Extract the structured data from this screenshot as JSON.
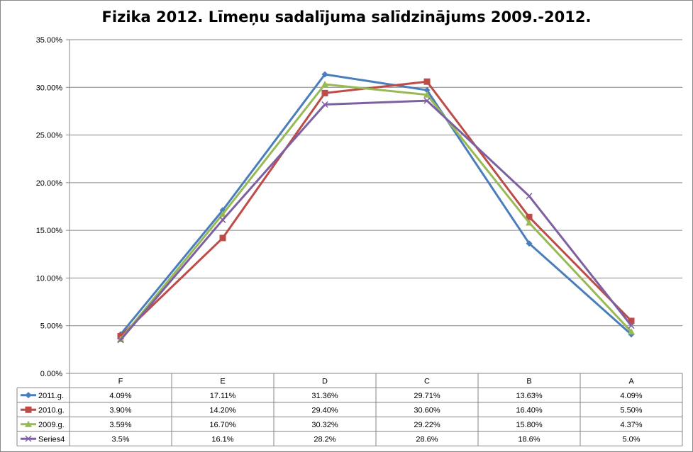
{
  "chart_data": {
    "type": "line",
    "title": "Fizika 2012. Līmeņu sadalījuma salīdzinājums 2009.-2012.",
    "categories": [
      "F",
      "E",
      "D",
      "C",
      "B",
      "A"
    ],
    "ylim": [
      0,
      35
    ],
    "yticks": [
      "0.00%",
      "5.00%",
      "10.00%",
      "15.00%",
      "20.00%",
      "25.00%",
      "30.00%",
      "35.00%"
    ],
    "grid": true,
    "legend": "data table below chart",
    "series": [
      {
        "name": "2011.g.",
        "color": "#4a7ebb",
        "marker": "diamond",
        "values": [
          4.09,
          17.11,
          31.36,
          29.71,
          13.63,
          4.09
        ],
        "labels": [
          "4.09%",
          "17.11%",
          "31.36%",
          "29.71%",
          "13.63%",
          "4.09%"
        ]
      },
      {
        "name": "2010.g.",
        "color": "#be4b48",
        "marker": "square",
        "values": [
          3.9,
          14.2,
          29.4,
          30.6,
          16.4,
          5.5
        ],
        "labels": [
          "3.90%",
          "14.20%",
          "29.40%",
          "30.60%",
          "16.40%",
          "5.50%"
        ]
      },
      {
        "name": "2009.g.",
        "color": "#98b954",
        "marker": "triangle",
        "values": [
          3.59,
          16.7,
          30.32,
          29.22,
          15.8,
          4.37
        ],
        "labels": [
          "3.59%",
          "16.70%",
          "30.32%",
          "29.22%",
          "15.80%",
          "4.37%"
        ]
      },
      {
        "name": "Series4",
        "color": "#7d60a0",
        "marker": "x",
        "values": [
          3.5,
          16.1,
          28.2,
          28.6,
          18.6,
          5.0
        ],
        "labels": [
          "3.5%",
          "16.1%",
          "28.2%",
          "28.6%",
          "18.6%",
          "5.0%"
        ]
      }
    ]
  }
}
